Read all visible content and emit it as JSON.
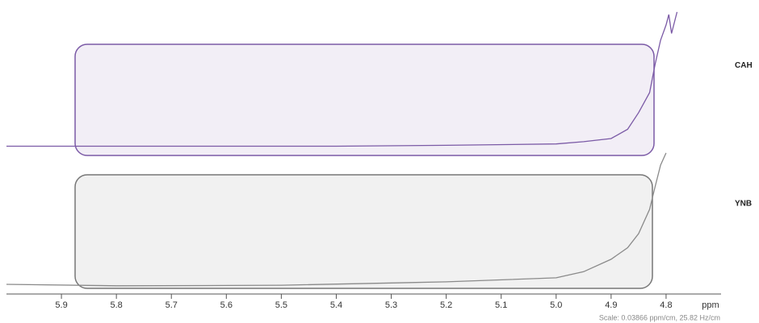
{
  "chart_data": {
    "type": "line",
    "x_label": "ppm",
    "annotation": "Scale: 0.03866 ppm/cm, 25.82 Hz/cm",
    "xlim": [
      6.0,
      4.7
    ],
    "xticks": [
      5.9,
      5.8,
      5.7,
      5.6,
      5.5,
      5.4,
      5.3,
      5.2,
      5.1,
      {
        "value": 5,
        "label": "5.0"
      },
      4.9,
      4.8
    ],
    "ylim": [
      0,
      100
    ],
    "series": [
      {
        "name": "CAH",
        "color": "#7b5aa6",
        "x": [
          6.0,
          5.8,
          5.6,
          5.4,
          5.2,
          5.0,
          4.95,
          4.9,
          4.87,
          4.85,
          4.83,
          4.82,
          4.81,
          4.8,
          4.795,
          4.79,
          4.78
        ],
        "values": [
          51,
          51,
          51,
          51,
          51.3,
          51.8,
          52.6,
          53.7,
          57,
          62.9,
          70,
          80,
          88.6,
          94,
          97.7,
          91,
          98.6
        ]
      },
      {
        "name": "YNB",
        "color": "#8a8a8a",
        "x": [
          6.0,
          5.8,
          5.6,
          5.5,
          5.2,
          5.0,
          4.95,
          4.9,
          4.87,
          4.85,
          4.83,
          4.82,
          4.81,
          4.8
        ],
        "values": [
          2,
          1.5,
          1.6,
          1.7,
          2.9,
          4.3,
          6.5,
          10.9,
          15,
          20,
          28.6,
          36.6,
          44.3,
          48.6
        ]
      }
    ]
  }
}
